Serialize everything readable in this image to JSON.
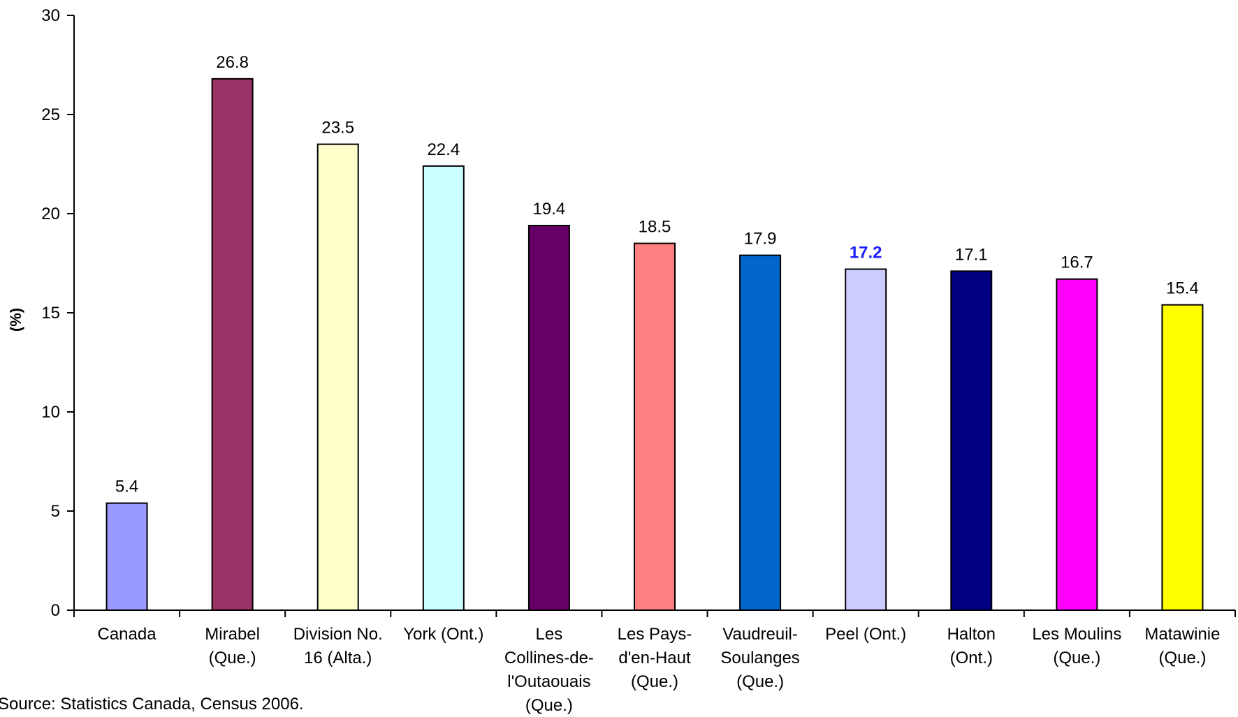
{
  "chart_data": {
    "type": "bar",
    "title": "",
    "xlabel": "",
    "ylabel": "(%)",
    "ylim": [
      0,
      30
    ],
    "yticks": [
      0,
      5,
      10,
      15,
      20,
      25,
      30
    ],
    "grid": false,
    "legend": false,
    "categories": [
      [
        "Canada"
      ],
      [
        "Mirabel",
        "(Que.)"
      ],
      [
        "Division No.",
        "16 (Alta.)"
      ],
      [
        "York (Ont.)"
      ],
      [
        "Les",
        "Collines-de-",
        "l'Outaouais",
        "(Que.)"
      ],
      [
        "Les Pays-",
        "d'en-Haut",
        "(Que.)"
      ],
      [
        "Vaudreuil-",
        "Soulanges",
        "(Que.)"
      ],
      [
        "Peel (Ont.)"
      ],
      [
        "Halton",
        "(Ont.)"
      ],
      [
        "Les Moulins",
        "(Que.)"
      ],
      [
        "Matawinie",
        "(Que.)"
      ]
    ],
    "values": [
      5.4,
      26.8,
      23.5,
      22.4,
      19.4,
      18.5,
      17.9,
      17.2,
      17.1,
      16.7,
      15.4
    ],
    "value_labels": [
      "5.4",
      "26.8",
      "23.5",
      "22.4",
      "19.4",
      "18.5",
      "17.9",
      "17.2",
      "17.1",
      "16.7",
      "15.4"
    ],
    "bar_colors": [
      "#9999FF",
      "#993366",
      "#FFFFCC",
      "#CCFFFF",
      "#660066",
      "#FF8080",
      "#0066CC",
      "#CCCCFF",
      "#000080",
      "#FF00FF",
      "#FFFF00"
    ],
    "highlight_index": 7,
    "highlight_color": "#1F1FFF",
    "source": "Source: Statistics Canada, Census 2006."
  }
}
